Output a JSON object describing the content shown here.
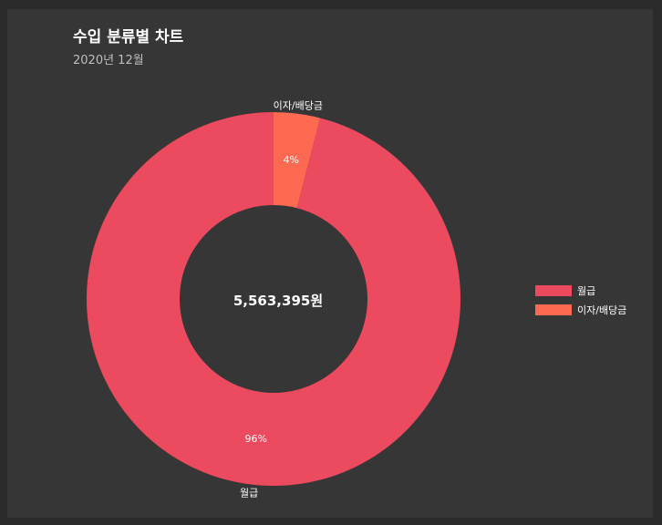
{
  "header": {
    "title": "수입 분류별 차트",
    "subtitle": "2020년 12월"
  },
  "chart_data": {
    "type": "pie",
    "variant": "doughnut",
    "center_label": "5,563,395원",
    "categories": [
      "월급",
      "이자/배당금"
    ],
    "values": [
      96,
      4
    ],
    "value_labels": [
      "96%",
      "4%"
    ],
    "colors": [
      "#ec4a5f",
      "#fe6952"
    ],
    "legend": {
      "position": "right"
    },
    "start_angle": "top",
    "direction": "counterclockwise-from-top"
  }
}
